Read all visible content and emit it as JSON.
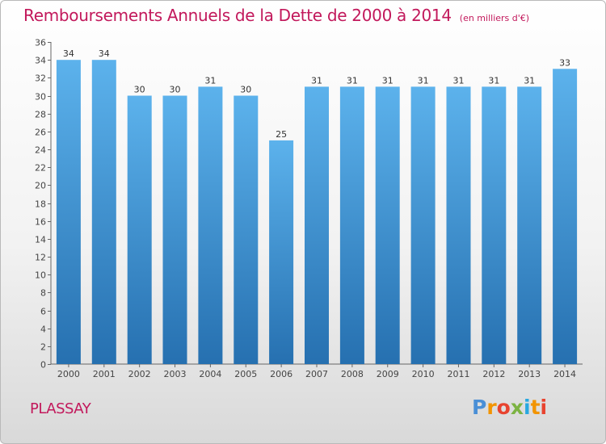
{
  "header": {
    "title": "Remboursements Annuels de la Dette de 2000 à 2014",
    "subtitle": "(en milliers d'€)"
  },
  "footer": {
    "commune": "PLASSAY",
    "brand": "Proxiti"
  },
  "colors": {
    "title": "#c2185b",
    "bar_light": "#5aaee8",
    "bar_dark": "#2a78b8",
    "axis": "#555555",
    "grid": "#dddddd"
  },
  "chart_data": {
    "type": "bar",
    "categories": [
      "2000",
      "2001",
      "2002",
      "2003",
      "2004",
      "2005",
      "2006",
      "2007",
      "2008",
      "2009",
      "2010",
      "2011",
      "2012",
      "2013",
      "2014"
    ],
    "values": [
      34,
      34,
      30,
      30,
      31,
      30,
      25,
      31,
      31,
      31,
      31,
      31,
      31,
      31,
      33
    ],
    "ylim": [
      0,
      36
    ],
    "yticks": [
      0,
      2,
      4,
      6,
      8,
      10,
      12,
      14,
      16,
      18,
      20,
      22,
      24,
      26,
      28,
      30,
      32,
      34,
      36
    ],
    "xlabel": "",
    "ylabel": "",
    "data_labels": true,
    "grid": false,
    "legend": "none"
  }
}
